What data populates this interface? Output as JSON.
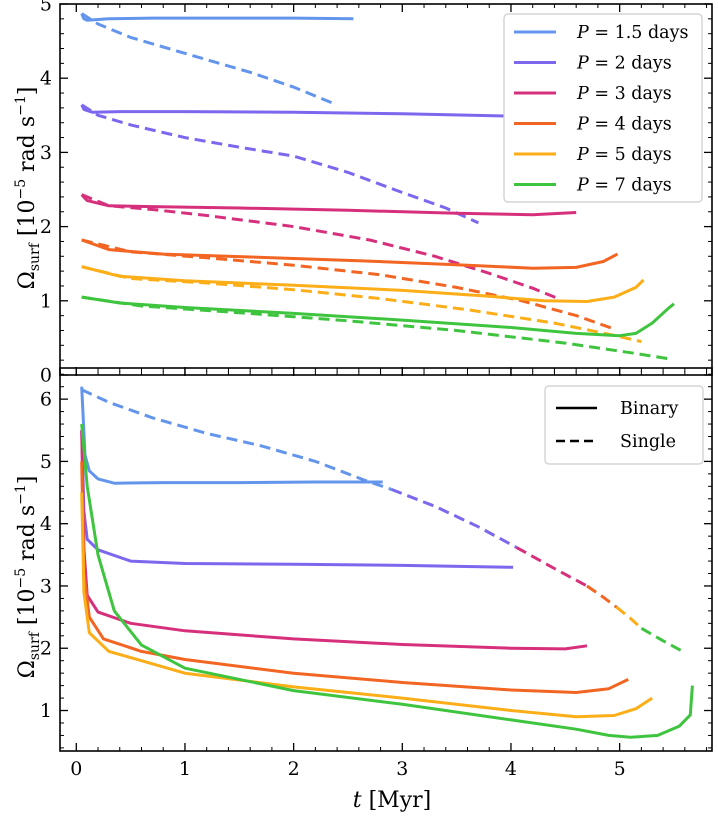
{
  "chart_data": [
    {
      "type": "line",
      "panel": "top",
      "xlim": [
        -0.15,
        5.85
      ],
      "ylim": [
        0,
        5
      ],
      "yticks": [
        0,
        1,
        2,
        3,
        4,
        5
      ],
      "ytick_labels": [
        "0",
        "1",
        "2",
        "3",
        "4",
        "5"
      ],
      "ylabel": "Ω_surf [10⁻⁵ rad s⁻¹]",
      "legend_position": "top-right",
      "series": [
        {
          "name": "P = 1.5 days",
          "label_prefix": "P",
          "label_value": "= 1.5 days",
          "color": "#6495ed",
          "binary": [
            [
              0.05,
              4.87
            ],
            [
              0.07,
              4.8
            ],
            [
              0.1,
              4.78
            ],
            [
              0.3,
              4.8
            ],
            [
              0.7,
              4.81
            ],
            [
              1.5,
              4.81
            ],
            [
              2.0,
              4.81
            ],
            [
              2.55,
              4.8
            ]
          ],
          "single": [
            [
              0.05,
              4.87
            ],
            [
              0.2,
              4.73
            ],
            [
              0.5,
              4.55
            ],
            [
              0.8,
              4.42
            ],
            [
              1.2,
              4.25
            ],
            [
              1.6,
              4.08
            ],
            [
              2.0,
              3.88
            ],
            [
              2.35,
              3.67
            ]
          ]
        },
        {
          "name": "P = 2 days",
          "label_prefix": "P",
          "label_value": "= 2 days",
          "color": "#7b68ee",
          "binary": [
            [
              0.05,
              3.64
            ],
            [
              0.07,
              3.58
            ],
            [
              0.15,
              3.54
            ],
            [
              0.4,
              3.55
            ],
            [
              1.0,
              3.55
            ],
            [
              2.0,
              3.54
            ],
            [
              3.0,
              3.52
            ],
            [
              3.95,
              3.49
            ]
          ],
          "single": [
            [
              0.05,
              3.64
            ],
            [
              0.2,
              3.5
            ],
            [
              0.5,
              3.37
            ],
            [
              1.0,
              3.2
            ],
            [
              1.5,
              3.07
            ],
            [
              2.0,
              2.95
            ],
            [
              2.5,
              2.73
            ],
            [
              3.0,
              2.46
            ],
            [
              3.4,
              2.25
            ],
            [
              3.7,
              2.05
            ]
          ]
        },
        {
          "name": "P = 3 days",
          "label_prefix": "P",
          "label_value": "= 3 days",
          "color": "#d6307d",
          "binary": [
            [
              0.05,
              2.43
            ],
            [
              0.1,
              2.35
            ],
            [
              0.3,
              2.28
            ],
            [
              0.7,
              2.27
            ],
            [
              1.5,
              2.25
            ],
            [
              2.5,
              2.22
            ],
            [
              3.5,
              2.18
            ],
            [
              4.2,
              2.16
            ],
            [
              4.6,
              2.19
            ]
          ],
          "single": [
            [
              0.05,
              2.43
            ],
            [
              0.3,
              2.28
            ],
            [
              0.7,
              2.23
            ],
            [
              1.2,
              2.15
            ],
            [
              2.0,
              2.0
            ],
            [
              2.7,
              1.82
            ],
            [
              3.3,
              1.6
            ],
            [
              3.8,
              1.37
            ],
            [
              4.2,
              1.17
            ],
            [
              4.45,
              1.02
            ]
          ]
        },
        {
          "name": "P = 4 days",
          "label_prefix": "P",
          "label_value": "= 4 days",
          "color": "#f26522",
          "binary": [
            [
              0.05,
              1.82
            ],
            [
              0.3,
              1.69
            ],
            [
              0.8,
              1.63
            ],
            [
              1.6,
              1.59
            ],
            [
              2.6,
              1.54
            ],
            [
              3.6,
              1.48
            ],
            [
              4.2,
              1.44
            ],
            [
              4.6,
              1.45
            ],
            [
              4.85,
              1.53
            ],
            [
              4.98,
              1.63
            ]
          ],
          "single": [
            [
              0.05,
              1.82
            ],
            [
              0.5,
              1.66
            ],
            [
              1.2,
              1.58
            ],
            [
              2.0,
              1.48
            ],
            [
              2.8,
              1.35
            ],
            [
              3.5,
              1.18
            ],
            [
              4.1,
              1.0
            ],
            [
              4.6,
              0.8
            ],
            [
              4.95,
              0.62
            ]
          ]
        },
        {
          "name": "P = 5 days",
          "label_prefix": "P",
          "label_value": "= 5 days",
          "color": "#fbae17",
          "binary": [
            [
              0.05,
              1.46
            ],
            [
              0.4,
              1.33
            ],
            [
              1.0,
              1.27
            ],
            [
              2.0,
              1.21
            ],
            [
              3.0,
              1.14
            ],
            [
              3.8,
              1.06
            ],
            [
              4.3,
              1.0
            ],
            [
              4.7,
              0.99
            ],
            [
              4.95,
              1.05
            ],
            [
              5.15,
              1.18
            ],
            [
              5.22,
              1.28
            ]
          ],
          "single": [
            [
              0.05,
              1.46
            ],
            [
              0.5,
              1.3
            ],
            [
              1.2,
              1.24
            ],
            [
              2.0,
              1.15
            ],
            [
              2.8,
              1.03
            ],
            [
              3.6,
              0.88
            ],
            [
              4.4,
              0.7
            ],
            [
              4.9,
              0.55
            ],
            [
              5.2,
              0.45
            ]
          ]
        },
        {
          "name": "P = 7 days",
          "label_prefix": "P",
          "label_value": "= 7 days",
          "color": "#3fc43f",
          "binary": [
            [
              0.05,
              1.05
            ],
            [
              0.4,
              0.97
            ],
            [
              1.0,
              0.91
            ],
            [
              2.0,
              0.83
            ],
            [
              3.0,
              0.74
            ],
            [
              4.0,
              0.64
            ],
            [
              4.6,
              0.56
            ],
            [
              5.0,
              0.53
            ],
            [
              5.15,
              0.56
            ],
            [
              5.3,
              0.7
            ],
            [
              5.45,
              0.9
            ],
            [
              5.5,
              0.96
            ]
          ],
          "single": [
            [
              0.05,
              1.05
            ],
            [
              0.6,
              0.93
            ],
            [
              1.5,
              0.84
            ],
            [
              2.5,
              0.73
            ],
            [
              3.5,
              0.6
            ],
            [
              4.5,
              0.43
            ],
            [
              5.1,
              0.3
            ],
            [
              5.45,
              0.22
            ]
          ]
        }
      ]
    },
    {
      "type": "line",
      "panel": "bottom",
      "xlim": [
        -0.15,
        5.85
      ],
      "ylim": [
        0.35,
        6.5
      ],
      "xticks": [
        0,
        1,
        2,
        3,
        4,
        5
      ],
      "xtick_labels": [
        "0",
        "1",
        "2",
        "3",
        "4",
        "5"
      ],
      "yticks": [
        1,
        2,
        3,
        4,
        5,
        6
      ],
      "ytick_labels": [
        "1",
        "2",
        "3",
        "4",
        "5",
        "6"
      ],
      "xlabel_var": "t",
      "xlabel_unit": "[Myr]",
      "ylabel": "Ω_surf [10⁻⁵ rad s⁻¹]",
      "legend_position": "top-right",
      "legend": [
        {
          "label": "Binary",
          "style": "solid"
        },
        {
          "label": "Single",
          "style": "dashed"
        }
      ],
      "binary": [
        {
          "name": "P = 1.5 days",
          "color": "#6495ed",
          "points": [
            [
              0.05,
              6.2
            ],
            [
              0.08,
              5.1
            ],
            [
              0.12,
              4.85
            ],
            [
              0.2,
              4.72
            ],
            [
              0.35,
              4.65
            ],
            [
              0.8,
              4.66
            ],
            [
              1.5,
              4.66
            ],
            [
              2.2,
              4.67
            ],
            [
              2.82,
              4.67
            ]
          ]
        },
        {
          "name": "P = 2 days",
          "color": "#7b68ee",
          "points": [
            [
              0.05,
              5.5
            ],
            [
              0.07,
              4.2
            ],
            [
              0.1,
              3.75
            ],
            [
              0.2,
              3.58
            ],
            [
              0.5,
              3.4
            ],
            [
              1.0,
              3.36
            ],
            [
              2.0,
              3.35
            ],
            [
              3.0,
              3.33
            ],
            [
              4.02,
              3.3
            ]
          ]
        },
        {
          "name": "P = 3 days",
          "color": "#d6307d",
          "points": [
            [
              0.05,
              5.5
            ],
            [
              0.07,
              3.6
            ],
            [
              0.1,
              2.85
            ],
            [
              0.2,
              2.58
            ],
            [
              0.5,
              2.4
            ],
            [
              1.0,
              2.28
            ],
            [
              2.0,
              2.15
            ],
            [
              3.0,
              2.06
            ],
            [
              4.0,
              2.0
            ],
            [
              4.5,
              1.99
            ],
            [
              4.7,
              2.04
            ]
          ]
        },
        {
          "name": "P = 4 days",
          "color": "#f26522",
          "points": [
            [
              0.05,
              5.0
            ],
            [
              0.07,
              3.2
            ],
            [
              0.12,
              2.5
            ],
            [
              0.25,
              2.15
            ],
            [
              0.6,
              1.95
            ],
            [
              1.0,
              1.82
            ],
            [
              2.0,
              1.6
            ],
            [
              3.0,
              1.45
            ],
            [
              4.0,
              1.33
            ],
            [
              4.6,
              1.29
            ],
            [
              4.9,
              1.35
            ],
            [
              5.08,
              1.5
            ]
          ]
        },
        {
          "name": "P = 5 days",
          "color": "#fbae17",
          "points": [
            [
              0.05,
              4.5
            ],
            [
              0.07,
              2.9
            ],
            [
              0.12,
              2.25
            ],
            [
              0.3,
              1.95
            ],
            [
              0.7,
              1.75
            ],
            [
              1.0,
              1.6
            ],
            [
              2.0,
              1.38
            ],
            [
              3.0,
              1.2
            ],
            [
              4.0,
              1.0
            ],
            [
              4.6,
              0.9
            ],
            [
              4.95,
              0.92
            ],
            [
              5.15,
              1.03
            ],
            [
              5.3,
              1.2
            ]
          ]
        },
        {
          "name": "P = 7 days",
          "color": "#3fc43f",
          "points": [
            [
              0.05,
              5.6
            ],
            [
              0.1,
              4.6
            ],
            [
              0.2,
              3.5
            ],
            [
              0.35,
              2.6
            ],
            [
              0.6,
              2.05
            ],
            [
              1.0,
              1.68
            ],
            [
              2.0,
              1.32
            ],
            [
              3.0,
              1.1
            ],
            [
              4.0,
              0.85
            ],
            [
              4.6,
              0.7
            ],
            [
              4.9,
              0.6
            ],
            [
              5.1,
              0.57
            ],
            [
              5.35,
              0.6
            ],
            [
              5.55,
              0.75
            ],
            [
              5.65,
              0.93
            ],
            [
              5.67,
              1.4
            ]
          ]
        }
      ],
      "single": [
        {
          "color": "#6495ed",
          "points": [
            [
              0.05,
              6.15
            ],
            [
              0.3,
              5.95
            ],
            [
              0.7,
              5.7
            ],
            [
              1.2,
              5.45
            ],
            [
              1.7,
              5.25
            ],
            [
              2.2,
              5.0
            ],
            [
              2.65,
              4.7
            ],
            [
              2.9,
              4.55
            ]
          ]
        },
        {
          "color": "#7b68ee",
          "points": [
            [
              2.9,
              4.55
            ],
            [
              3.3,
              4.28
            ],
            [
              3.7,
              3.95
            ],
            [
              4.05,
              3.62
            ]
          ]
        },
        {
          "color": "#d6307d",
          "points": [
            [
              4.05,
              3.62
            ],
            [
              4.4,
              3.28
            ],
            [
              4.7,
              3.0
            ]
          ]
        },
        {
          "color": "#f26522",
          "points": [
            [
              4.7,
              3.0
            ],
            [
              4.85,
              2.82
            ],
            [
              4.97,
              2.66
            ]
          ]
        },
        {
          "color": "#fbae17",
          "points": [
            [
              4.97,
              2.66
            ],
            [
              5.1,
              2.48
            ],
            [
              5.2,
              2.32
            ]
          ]
        },
        {
          "color": "#3fc43f",
          "points": [
            [
              5.2,
              2.32
            ],
            [
              5.4,
              2.12
            ],
            [
              5.58,
              1.95
            ]
          ]
        }
      ]
    }
  ]
}
